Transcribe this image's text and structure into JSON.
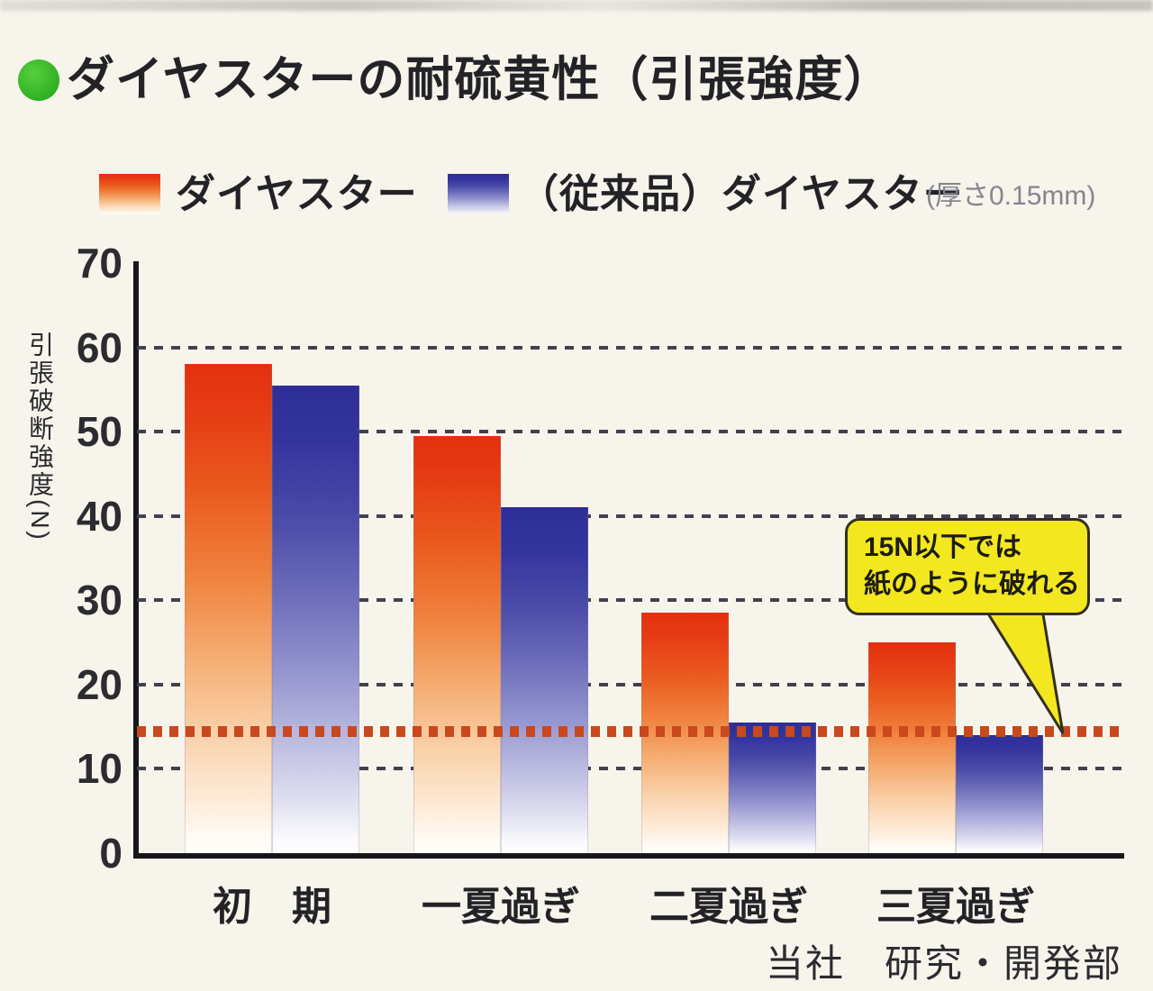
{
  "title": {
    "text": "ダイヤスターの耐硫黄性（引張強度）"
  },
  "legend": {
    "series1": {
      "label": "ダイヤスター",
      "color_top": "#e3300f"
    },
    "series2": {
      "label": "（従来品）ダイヤスター",
      "color_top": "#2e2e97"
    },
    "note": "(厚さ0.15mm)"
  },
  "chart_data": {
    "type": "bar",
    "title": "ダイヤスターの耐硫黄性（引張強度）",
    "categories": [
      "初　期",
      "一夏過ぎ",
      "二夏過ぎ",
      "三夏過ぎ"
    ],
    "series": [
      {
        "name": "ダイヤスター",
        "values": [
          58,
          49.5,
          28.5,
          25
        ]
      },
      {
        "name": "（従来品）ダイヤスター",
        "values": [
          55.5,
          41,
          15.5,
          14
        ]
      }
    ],
    "ylabel": "引張破断強度(N)",
    "yticks": [
      0,
      10,
      20,
      30,
      40,
      50,
      60,
      70
    ],
    "ylim": [
      0,
      70
    ],
    "gridlines": [
      10,
      20,
      30,
      40,
      50,
      60
    ],
    "grid_style": "dashed horizontal",
    "threshold_line": {
      "value": 15,
      "color": "#c9481d",
      "style": "thick dotted"
    },
    "legend_position": "top"
  },
  "annotation": {
    "lines": [
      "15N以下では",
      "紙のように破れる"
    ],
    "bubble_color": "#f3e71f"
  },
  "footer": {
    "credit": "当社　研究・開発部"
  }
}
